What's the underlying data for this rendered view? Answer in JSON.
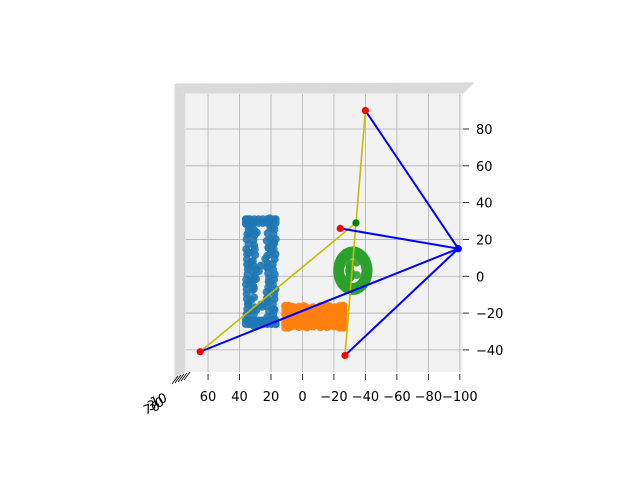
{
  "chart_data": {
    "type": "scatter",
    "title": "",
    "projection": "3d",
    "view": "top-down (looking along z)",
    "grid": true,
    "x_axis": {
      "range": [
        74,
        -102
      ],
      "ticks": [
        60,
        40,
        20,
        0,
        -20,
        -40,
        -60,
        -80,
        -100
      ],
      "tick_labels": [
        "60",
        "40",
        "20",
        "0",
        "−20",
        "−40",
        "−60",
        "−80",
        "−100"
      ]
    },
    "y_axis": {
      "range": [
        -52,
        99
      ],
      "ticks": [
        -40,
        -20,
        0,
        20,
        40,
        60,
        80
      ],
      "tick_labels": [
        "−40",
        "−20",
        "0",
        "20",
        "40",
        "60",
        "80"
      ]
    },
    "z_axis": {
      "tick_labels": [
        "10",
        "30",
        "70"
      ]
    },
    "series": [
      {
        "kind": "point-cloud",
        "color": "#1f77b4",
        "shape": "hollow-rectangle",
        "x_range": [
          17,
          36
        ],
        "y_range": [
          -26,
          31
        ]
      },
      {
        "kind": "point-cloud",
        "color": "#ff7f0e",
        "shape": "rounded-rectangle",
        "x_range": [
          -26,
          11
        ],
        "y_range": [
          -28,
          -16
        ]
      },
      {
        "kind": "point-cloud",
        "color": "#2ca02c",
        "shape": "ring",
        "center": [
          -32,
          3
        ],
        "radius_x": 10,
        "radius_y": 11
      }
    ],
    "key_points": {
      "red": [
        [
          -40,
          90
        ],
        [
          -24,
          26
        ],
        [
          65,
          -41
        ],
        [
          -27,
          -43
        ]
      ],
      "green": [
        [
          -34,
          29
        ]
      ],
      "blue": [
        [
          -99,
          15
        ]
      ]
    },
    "lines": {
      "blue": [
        [
          [
            -40,
            90
          ],
          [
            -99,
            15
          ]
        ],
        [
          [
            -24,
            26
          ],
          [
            -99,
            15
          ]
        ],
        [
          [
            65,
            -41
          ],
          [
            -99,
            15
          ]
        ],
        [
          [
            -27,
            -43
          ],
          [
            -99,
            15
          ]
        ]
      ],
      "yellow": [
        [
          [
            -40,
            90
          ],
          [
            -27,
            -43
          ]
        ],
        [
          [
            -34,
            29
          ],
          [
            65,
            -41
          ]
        ]
      ]
    },
    "colors": {
      "line_blue": "#0000ff",
      "line_yellow": "#bfbf00",
      "point_red": "#ff0000",
      "point_green": "#008000",
      "point_blue": "#0000ff",
      "pane": "#f2f2f2",
      "grid": "#b0b0b0"
    }
  }
}
